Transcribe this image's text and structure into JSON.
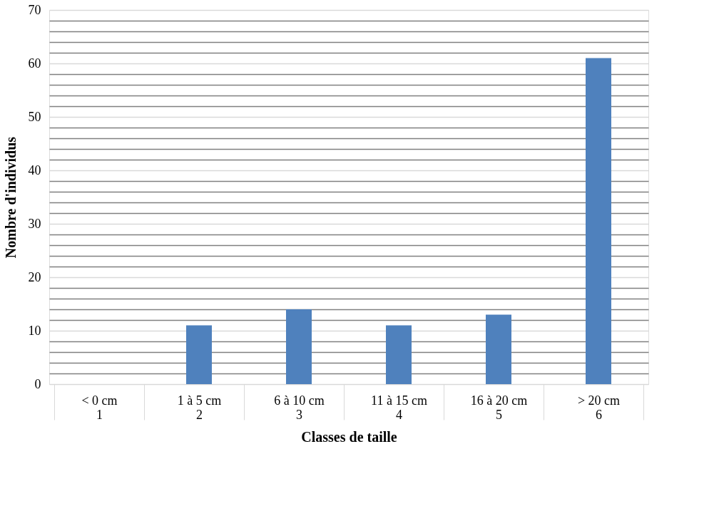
{
  "chart_data": {
    "type": "bar",
    "xlabel": "Classes de taille",
    "ylabel": "Nombre d'individus",
    "categories": [
      "< 0 cm\n1",
      "1 à 5 cm\n2",
      "6 à 10 cm\n3",
      "11 à 15 cm\n4",
      "16 à 20 cm\n5",
      "> 20 cm\n6"
    ],
    "values": [
      0,
      11,
      14,
      11,
      13,
      61
    ],
    "color": "#4f81bd",
    "ylim": [
      0,
      70
    ],
    "yticks": [
      0,
      {
        "value": 2,
        "label": null
      },
      {
        "value": 4,
        "label": null
      },
      {
        "value": 6,
        "label": null
      },
      {
        "value": 8,
        "label": null
      },
      10,
      {
        "value": 12,
        "label": null
      },
      {
        "value": 14,
        "label": null
      },
      {
        "value": 16,
        "label": null
      },
      {
        "value": 18,
        "label": null
      },
      20,
      {
        "value": 22,
        "label": null
      },
      {
        "value": 24,
        "label": null
      },
      {
        "value": 26,
        "label": null
      },
      {
        "value": 28,
        "label": null
      },
      30,
      {
        "value": 32,
        "label": null
      },
      {
        "value": 34,
        "label": null
      },
      {
        "value": 36,
        "label": null
      },
      {
        "value": 38,
        "label": null
      },
      40,
      {
        "value": 42,
        "label": null
      },
      {
        "value": 44,
        "label": null
      },
      {
        "value": 46,
        "label": null
      },
      {
        "value": 48,
        "label": null
      },
      50,
      {
        "value": 52,
        "label": null
      },
      {
        "value": 54,
        "label": null
      },
      {
        "value": 56,
        "label": null
      },
      {
        "value": 58,
        "label": null
      },
      60,
      {
        "value": 62,
        "label": null
      },
      {
        "value": 64,
        "label": null
      },
      {
        "value": 66,
        "label": null
      },
      {
        "value": 68,
        "label": null
      },
      70
    ],
    "grid": "y"
  }
}
